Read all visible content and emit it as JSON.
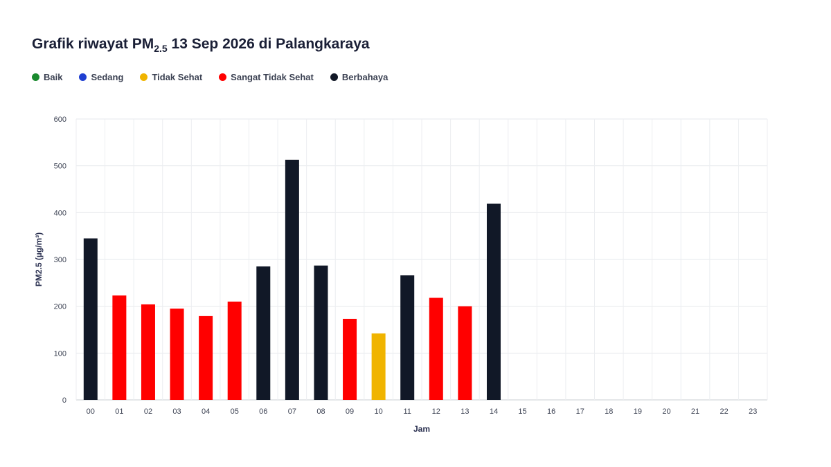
{
  "title": {
    "prefix": "Grafik riwayat PM",
    "subscript": "2.5",
    "suffix": " 13 Sep 2026 di Palangkaraya"
  },
  "legend": [
    {
      "label": "Baik",
      "color": "#1a8a2e"
    },
    {
      "label": "Sedang",
      "color": "#1f3fd1"
    },
    {
      "label": "Tidak Sehat",
      "color": "#f0b400"
    },
    {
      "label": "Sangat Tidak Sehat",
      "color": "#ff0000"
    },
    {
      "label": "Berbahaya",
      "color": "#111827"
    }
  ],
  "chart_data": {
    "type": "bar",
    "xlabel": "Jam",
    "ylabel": "PM2.5 (µg/m³)",
    "ylim": [
      0,
      600
    ],
    "yticks": [
      0,
      100,
      200,
      300,
      400,
      500,
      600
    ],
    "grid": true,
    "legend_position": "top-left",
    "categories": [
      "00",
      "01",
      "02",
      "03",
      "04",
      "05",
      "06",
      "07",
      "08",
      "09",
      "10",
      "11",
      "12",
      "13",
      "14",
      "15",
      "16",
      "17",
      "18",
      "19",
      "20",
      "21",
      "22",
      "23"
    ],
    "values": [
      345,
      223,
      204,
      195,
      179,
      210,
      285,
      513,
      287,
      173,
      142,
      266,
      218,
      200,
      419,
      null,
      null,
      null,
      null,
      null,
      null,
      null,
      null,
      null
    ],
    "colors": [
      "#111827",
      "#ff0000",
      "#ff0000",
      "#ff0000",
      "#ff0000",
      "#ff0000",
      "#111827",
      "#111827",
      "#111827",
      "#ff0000",
      "#f0b400",
      "#111827",
      "#ff0000",
      "#ff0000",
      "#111827",
      null,
      null,
      null,
      null,
      null,
      null,
      null,
      null,
      null
    ]
  }
}
